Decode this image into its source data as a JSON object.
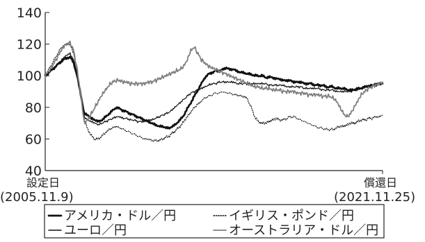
{
  "chart_data": {
    "type": "line",
    "title": "",
    "xlabel": "",
    "ylabel": "",
    "ylim": [
      40,
      140
    ],
    "yticks": [
      40,
      60,
      80,
      100,
      120,
      140
    ],
    "x_start": {
      "label": "設定日",
      "date": "(2005.11.9)"
    },
    "x_end": {
      "label": "償還日",
      "date": "(2021.11.25)"
    },
    "legend_position": "bottom",
    "series": [
      {
        "name": "アメリカ・ドル／円",
        "color": "#111111",
        "style": "thick",
        "values": [
          100,
          102,
          104,
          106,
          108,
          110,
          111,
          112,
          108,
          100,
          88,
          76,
          75,
          73,
          72,
          71,
          72,
          74,
          76,
          78,
          80,
          79,
          78,
          77,
          76,
          75,
          74,
          73,
          72,
          71,
          70,
          69,
          68,
          68,
          67,
          67,
          68,
          70,
          72,
          75,
          79,
          83,
          87,
          91,
          95,
          99,
          101,
          102,
          103,
          103,
          104,
          105,
          104,
          104,
          103,
          102,
          102,
          101,
          101,
          100,
          100,
          100,
          99,
          99,
          99,
          98,
          98,
          97,
          97,
          97,
          96,
          96,
          96,
          95,
          95,
          95,
          94,
          94,
          94,
          93,
          93,
          93,
          92,
          92,
          92,
          91,
          91,
          91,
          92,
          92,
          93,
          93,
          94,
          94,
          95,
          95
        ]
      },
      {
        "name": "イギリス・ポンド／円",
        "color": "#111111",
        "style": "dotted",
        "values": [
          100,
          104,
          108,
          112,
          116,
          119,
          120,
          120,
          114,
          104,
          88,
          72,
          66,
          62,
          60,
          60,
          62,
          64,
          66,
          67,
          68,
          67,
          66,
          65,
          64,
          63,
          62,
          61,
          60,
          60,
          59,
          59,
          59,
          60,
          61,
          62,
          64,
          66,
          68,
          71,
          74,
          77,
          80,
          82,
          84,
          86,
          87,
          88,
          89,
          89,
          90,
          89,
          89,
          88,
          88,
          87,
          87,
          85,
          80,
          74,
          71,
          70,
          70,
          71,
          72,
          73,
          72,
          72,
          73,
          74,
          74,
          73,
          72,
          71,
          70,
          69,
          68,
          67,
          67,
          66,
          66,
          66,
          67,
          68,
          68,
          69,
          70,
          70,
          71,
          72,
          72,
          73,
          73,
          74,
          74,
          75
        ]
      },
      {
        "name": "ユーロ／円",
        "color": "#111111",
        "style": "thin",
        "values": [
          100,
          102,
          104,
          106,
          108,
          111,
          113,
          114,
          110,
          102,
          88,
          74,
          72,
          71,
          70,
          69,
          70,
          71,
          72,
          73,
          74,
          74,
          73,
          73,
          72,
          72,
          71,
          71,
          71,
          72,
          72,
          73,
          74,
          75,
          76,
          77,
          79,
          81,
          83,
          85,
          87,
          89,
          90,
          91,
          92,
          93,
          94,
          95,
          95,
          96,
          96,
          96,
          96,
          96,
          95,
          95,
          95,
          95,
          95,
          95,
          95,
          95,
          95,
          94,
          94,
          94,
          94,
          94,
          93,
          93,
          93,
          93,
          93,
          92,
          92,
          92,
          92,
          92,
          91,
          91,
          91,
          91,
          90,
          90,
          90,
          90,
          90,
          91,
          91,
          92,
          93,
          94,
          94,
          95,
          95,
          96
        ]
      },
      {
        "name": "オーストラリア・ドル／円",
        "color": "#7f7f7f",
        "style": "medium",
        "values": [
          100,
          103,
          106,
          110,
          114,
          118,
          120,
          121,
          116,
          104,
          88,
          70,
          72,
          76,
          80,
          84,
          88,
          91,
          94,
          96,
          97,
          97,
          96,
          96,
          95,
          95,
          95,
          95,
          95,
          96,
          96,
          97,
          98,
          99,
          100,
          101,
          102,
          103,
          104,
          106,
          110,
          116,
          118,
          114,
          110,
          108,
          106,
          105,
          104,
          103,
          102,
          101,
          100,
          99,
          98,
          97,
          96,
          95,
          94,
          93,
          93,
          92,
          92,
          92,
          91,
          91,
          91,
          90,
          90,
          90,
          90,
          89,
          89,
          89,
          88,
          88,
          88,
          88,
          87,
          87,
          87,
          86,
          84,
          80,
          76,
          74,
          76,
          80,
          84,
          88,
          90,
          92,
          93,
          94,
          95,
          96
        ]
      }
    ]
  }
}
